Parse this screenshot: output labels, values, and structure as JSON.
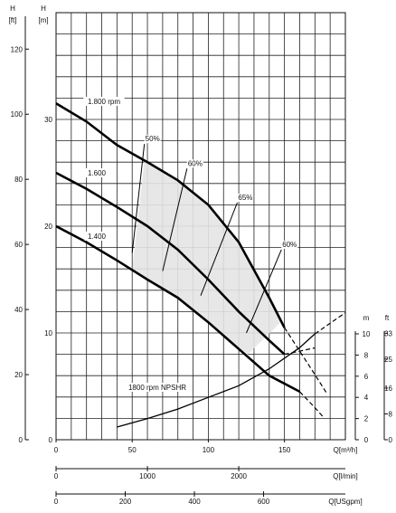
{
  "chart_data": {
    "type": "line",
    "title": "",
    "axes": {
      "left_outer": {
        "label_top": "H",
        "label_unit": "[ft]",
        "ticks": [
          0,
          20,
          40,
          60,
          80,
          100,
          120
        ],
        "range": [
          0,
          131.2
        ]
      },
      "left_inner": {
        "label_top": "H",
        "label_unit": "[m]",
        "ticks": [
          0,
          10,
          20,
          30
        ],
        "range": [
          0,
          40
        ]
      },
      "x_flow_m3h": {
        "label": "Q[m³/h]",
        "ticks": [
          0,
          50,
          100,
          150
        ],
        "range": [
          0,
          190
        ]
      },
      "x_flow_lmin": {
        "label": "Q[l/min]",
        "ticks": [
          0,
          1000,
          2000
        ],
        "range": [
          0,
          3166.7
        ]
      },
      "x_flow_usgpm": {
        "label": "Q[USgpm]",
        "ticks": [
          0,
          200,
          400,
          600
        ],
        "range": [
          0,
          836.5
        ]
      },
      "right_npshr_m": {
        "label_top": "m",
        "ticks": [
          0,
          2,
          4,
          6,
          8,
          10
        ]
      },
      "right_npshr_ft": {
        "label_top": "ft",
        "ticks": [
          0,
          8,
          16,
          25,
          33
        ]
      }
    },
    "grid": true,
    "series": [
      {
        "name": "1.800 rpm",
        "x": [
          0,
          20,
          40,
          60,
          80,
          100,
          120,
          140,
          150
        ],
        "y": [
          31.5,
          29.8,
          27.6,
          26.0,
          24.3,
          22.0,
          18.5,
          13.3,
          10.5
        ],
        "extension": {
          "x": [
            150,
            160,
            170,
            178
          ],
          "y": [
            10.5,
            8.3,
            6.1,
            4.3
          ]
        }
      },
      {
        "name": "1.600",
        "x": [
          0,
          20,
          40,
          60,
          80,
          100,
          120,
          140,
          150
        ],
        "y": [
          25.0,
          23.5,
          21.8,
          20.0,
          17.8,
          15.0,
          12.0,
          9.3,
          8.0
        ],
        "extension": {
          "x": [
            150,
            160,
            170
          ],
          "y": [
            8.0,
            8.3,
            8.6
          ]
        }
      },
      {
        "name": "1.400",
        "x": [
          0,
          20,
          40,
          60,
          80,
          100,
          120,
          140,
          160
        ],
        "y": [
          20.0,
          18.5,
          16.8,
          15.0,
          13.3,
          11.0,
          8.5,
          6.0,
          4.5
        ],
        "extension": {
          "x": [
            160,
            170,
            175
          ],
          "y": [
            4.5,
            3.0,
            2.2
          ]
        }
      },
      {
        "name": "1800 rpm NPSHR",
        "axis": "right_npshr_m",
        "x": [
          40,
          60,
          80,
          100,
          120,
          140,
          160,
          170
        ],
        "y": [
          1.2,
          2.0,
          2.9,
          4.0,
          5.1,
          6.7,
          8.7,
          10.0
        ],
        "extension": {
          "x": [
            170,
            190
          ],
          "y": [
            10.0,
            12.0
          ]
        }
      }
    ],
    "efficiency_lines": [
      {
        "label": "50%",
        "x": [
          50,
          58
        ],
        "y": [
          17.5,
          27.7
        ]
      },
      {
        "label": "60%",
        "x": [
          70,
          86
        ],
        "y": [
          15.8,
          25.4
        ]
      },
      {
        "label": "65%",
        "x": [
          95,
          119
        ],
        "y": [
          13.5,
          22.2
        ]
      },
      {
        "label": "60%",
        "x": [
          125,
          148
        ],
        "y": [
          10.0,
          17.8
        ]
      }
    ],
    "shaded_region": "operating range between 50% and 60% efficiency lines"
  }
}
